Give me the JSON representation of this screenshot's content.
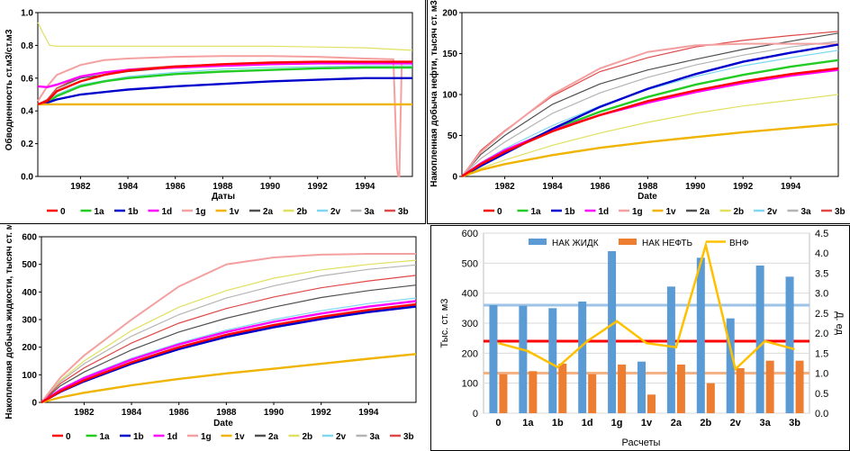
{
  "legend": [
    "0",
    "1a",
    "1b",
    "1d",
    "1g",
    "1v",
    "2a",
    "2b",
    "2v",
    "3a",
    "3b"
  ],
  "colors": {
    "0": "#ff0000",
    "1a": "#22cc22",
    "1b": "#0000cc",
    "1d": "#ff00ff",
    "1g": "#f4a0a0",
    "1v": "#f0b400",
    "2a": "#505050",
    "2b": "#e0e060",
    "2v": "#80d8f0",
    "3a": "#b4b4b4",
    "3b": "#e04848"
  },
  "chart_data": [
    {
      "type": "line",
      "ylabel": "Обводненность   ст.м3/ст.м3",
      "xlabel": "Даты",
      "xlim": [
        1980.2,
        1996.0
      ],
      "ylim": [
        0,
        1.0
      ],
      "yticks": [
        "0.0",
        "0.2",
        "0.4",
        "0.6",
        "0.8",
        "1.0"
      ],
      "xticks": [
        "1982",
        "1984",
        "1986",
        "1988",
        "1990",
        "1992",
        "1994"
      ],
      "series": [
        {
          "name": "0",
          "x": [
            1980.2,
            1980.6,
            1981,
            1982,
            1983,
            1984,
            1986,
            1988,
            1990,
            1992,
            1994,
            1995.4,
            1996
          ],
          "values": [
            0.44,
            0.46,
            0.52,
            0.58,
            0.62,
            0.645,
            0.67,
            0.685,
            0.695,
            0.7,
            0.7,
            0.7,
            0.7
          ]
        },
        {
          "name": "1a",
          "x": [
            1980.2,
            1980.6,
            1981,
            1982,
            1983,
            1984,
            1986,
            1988,
            1990,
            1992,
            1994,
            1996
          ],
          "values": [
            0.44,
            0.45,
            0.49,
            0.55,
            0.58,
            0.6,
            0.625,
            0.64,
            0.65,
            0.66,
            0.665,
            0.665
          ]
        },
        {
          "name": "1b",
          "x": [
            1980.2,
            1980.6,
            1981,
            1982,
            1984,
            1986,
            1988,
            1990,
            1992,
            1994,
            1996
          ],
          "values": [
            0.44,
            0.45,
            0.47,
            0.5,
            0.53,
            0.55,
            0.565,
            0.58,
            0.59,
            0.6,
            0.6
          ]
        },
        {
          "name": "1d",
          "x": [
            1980.2,
            1980.6,
            1981,
            1982,
            1983,
            1984,
            1986,
            1988,
            1990,
            1992,
            1994,
            1996
          ],
          "values": [
            0.55,
            0.545,
            0.56,
            0.61,
            0.635,
            0.65,
            0.665,
            0.675,
            0.685,
            0.69,
            0.69,
            0.69
          ]
        },
        {
          "name": "1g",
          "x": [
            1980.2,
            1980.6,
            1981,
            1982,
            1983,
            1984,
            1986,
            1988,
            1990,
            1992,
            1994,
            1995.2,
            1995.35,
            1995.4,
            1995.45,
            1995.55,
            1996
          ],
          "values": [
            0.46,
            0.55,
            0.62,
            0.68,
            0.71,
            0.72,
            0.73,
            0.735,
            0.735,
            0.73,
            0.72,
            0.715,
            0.05,
            0.0,
            0.0,
            0.7,
            0.7
          ]
        },
        {
          "name": "1v",
          "x": [
            1980.2,
            1996
          ],
          "values": [
            0.44,
            0.44
          ]
        },
        {
          "name": "2a",
          "x": [
            1980.2,
            1980.6,
            1981,
            1982,
            1984,
            1986,
            1988,
            1990,
            1992,
            1994,
            1996
          ],
          "values": [
            0.44,
            0.47,
            0.54,
            0.6,
            0.64,
            0.665,
            0.68,
            0.69,
            0.695,
            0.7,
            0.7
          ]
        },
        {
          "name": "2b",
          "x": [
            1980.2,
            1980.4,
            1980.7,
            1981,
            1982,
            1984,
            1986,
            1988,
            1990,
            1992,
            1994,
            1996
          ],
          "values": [
            0.94,
            0.88,
            0.8,
            0.795,
            0.795,
            0.795,
            0.795,
            0.795,
            0.795,
            0.79,
            0.785,
            0.77
          ]
        },
        {
          "name": "2v",
          "x": [
            1980.2,
            1980.6,
            1981,
            1982,
            1984,
            1986,
            1988,
            1990,
            1992,
            1994,
            1996
          ],
          "values": [
            0.44,
            0.46,
            0.5,
            0.56,
            0.61,
            0.635,
            0.655,
            0.665,
            0.67,
            0.675,
            0.675
          ]
        },
        {
          "name": "3a",
          "x": [
            1980.2,
            1980.6,
            1981,
            1982,
            1984,
            1986,
            1988,
            1990,
            1992,
            1994,
            1996
          ],
          "values": [
            0.44,
            0.47,
            0.53,
            0.6,
            0.645,
            0.665,
            0.68,
            0.69,
            0.69,
            0.695,
            0.695
          ]
        },
        {
          "name": "3b",
          "x": [
            1980.2,
            1980.6,
            1981,
            1982,
            1984,
            1986,
            1988,
            1990,
            1992,
            1994,
            1996
          ],
          "values": [
            0.44,
            0.47,
            0.54,
            0.61,
            0.655,
            0.675,
            0.685,
            0.69,
            0.695,
            0.7,
            0.7
          ]
        }
      ]
    },
    {
      "type": "line",
      "ylabel": "Накопленная добыча нефти,  тысяч ст. м3",
      "xlabel": "Date",
      "xlim": [
        1980.2,
        1996.0
      ],
      "ylim": [
        0,
        200
      ],
      "yticks": [
        "0",
        "50",
        "100",
        "150",
        "200"
      ],
      "xticks": [
        "1982",
        "1984",
        "1986",
        "1988",
        "1990",
        "1992",
        "1994"
      ],
      "series": [
        {
          "name": "0",
          "x": [
            1980.2,
            1981,
            1982,
            1984,
            1986,
            1988,
            1990,
            1992,
            1994,
            1996
          ],
          "values": [
            0,
            15,
            30,
            55,
            75,
            92,
            105,
            116,
            125,
            132
          ]
        },
        {
          "name": "1a",
          "x": [
            1980.2,
            1981,
            1982,
            1984,
            1986,
            1988,
            1990,
            1992,
            1994,
            1996
          ],
          "values": [
            0,
            15,
            31,
            57,
            79,
            97,
            112,
            124,
            134,
            142
          ]
        },
        {
          "name": "1b",
          "x": [
            1980.2,
            1981,
            1982,
            1984,
            1986,
            1988,
            1990,
            1992,
            1994,
            1996
          ],
          "values": [
            0,
            13,
            28,
            58,
            85,
            107,
            125,
            140,
            151,
            161
          ]
        },
        {
          "name": "1d",
          "x": [
            1980.2,
            1981,
            1982,
            1984,
            1986,
            1988,
            1990,
            1992,
            1994,
            1996
          ],
          "values": [
            0,
            16,
            32,
            56,
            75,
            90,
            103,
            114,
            123,
            130
          ]
        },
        {
          "name": "1g",
          "x": [
            1980.2,
            1981,
            1982,
            1984,
            1986,
            1988,
            1990,
            1992,
            1994,
            1996
          ],
          "values": [
            0,
            30,
            55,
            100,
            132,
            152,
            160,
            162,
            162,
            162
          ]
        },
        {
          "name": "1v",
          "x": [
            1980.2,
            1981,
            1982,
            1984,
            1986,
            1988,
            1990,
            1992,
            1994,
            1996
          ],
          "values": [
            0,
            8,
            15,
            26,
            35,
            42,
            48,
            54,
            59,
            64
          ]
        },
        {
          "name": "2a",
          "x": [
            1980.2,
            1981,
            1982,
            1984,
            1986,
            1988,
            1990,
            1992,
            1994,
            1996
          ],
          "values": [
            0,
            27,
            50,
            88,
            113,
            130,
            143,
            155,
            165,
            175
          ]
        },
        {
          "name": "2b",
          "x": [
            1980.2,
            1981,
            1982,
            1984,
            1986,
            1988,
            1990,
            1992,
            1994,
            1996
          ],
          "values": [
            0,
            10,
            20,
            38,
            53,
            66,
            77,
            86,
            93,
            100
          ]
        },
        {
          "name": "2v",
          "x": [
            1980.2,
            1981,
            1982,
            1984,
            1986,
            1988,
            1990,
            1992,
            1994,
            1996
          ],
          "values": [
            0,
            17,
            34,
            62,
            86,
            106,
            122,
            135,
            145,
            154
          ]
        },
        {
          "name": "3a",
          "x": [
            1980.2,
            1981,
            1982,
            1984,
            1986,
            1988,
            1990,
            1992,
            1994,
            1996
          ],
          "values": [
            0,
            22,
            42,
            77,
            102,
            121,
            136,
            148,
            158,
            165
          ]
        },
        {
          "name": "3b",
          "x": [
            1980.2,
            1981,
            1982,
            1984,
            1986,
            1988,
            1990,
            1992,
            1994,
            1996
          ],
          "values": [
            0,
            32,
            56,
            98,
            128,
            145,
            158,
            166,
            172,
            177
          ]
        }
      ]
    },
    {
      "type": "line",
      "ylabel": "Накопленная добыча жидкости,   тысяч ст. м3",
      "xlabel": "Date",
      "xlim": [
        1980.2,
        1996.0
      ],
      "ylim": [
        0,
        600
      ],
      "yticks": [
        "0",
        "100",
        "200",
        "300",
        "400",
        "500",
        "600"
      ],
      "xticks": [
        "1982",
        "1984",
        "1986",
        "1988",
        "1990",
        "1992",
        "1994"
      ],
      "series": [
        {
          "name": "0",
          "x": [
            1980.2,
            1981,
            1982,
            1984,
            1986,
            1988,
            1990,
            1992,
            1994,
            1996
          ],
          "values": [
            0,
            40,
            80,
            145,
            200,
            245,
            280,
            310,
            335,
            355
          ]
        },
        {
          "name": "1a",
          "x": [
            1980.2,
            1981,
            1982,
            1984,
            1986,
            1988,
            1990,
            1992,
            1994,
            1996
          ],
          "values": [
            0,
            40,
            78,
            142,
            196,
            240,
            276,
            306,
            330,
            350
          ]
        },
        {
          "name": "1b",
          "x": [
            1980.2,
            1981,
            1982,
            1984,
            1986,
            1988,
            1990,
            1992,
            1994,
            1996
          ],
          "values": [
            0,
            38,
            76,
            140,
            193,
            237,
            272,
            302,
            327,
            347
          ]
        },
        {
          "name": "1d",
          "x": [
            1980.2,
            1981,
            1982,
            1984,
            1986,
            1988,
            1990,
            1992,
            1994,
            1996
          ],
          "values": [
            0,
            46,
            88,
            155,
            210,
            255,
            292,
            322,
            347,
            367
          ]
        },
        {
          "name": "1g",
          "x": [
            1980.2,
            1981,
            1982,
            1984,
            1986,
            1988,
            1990,
            1992,
            1994,
            1996
          ],
          "values": [
            0,
            90,
            170,
            300,
            420,
            500,
            525,
            535,
            538,
            538
          ]
        },
        {
          "name": "1v",
          "x": [
            1980.2,
            1981,
            1982,
            1984,
            1986,
            1988,
            1990,
            1992,
            1994,
            1996
          ],
          "values": [
            0,
            18,
            35,
            62,
            85,
            105,
            122,
            140,
            158,
            175
          ]
        },
        {
          "name": "2a",
          "x": [
            1980.2,
            1981,
            1982,
            1984,
            1986,
            1988,
            1990,
            1992,
            1994,
            1996
          ],
          "values": [
            0,
            60,
            110,
            190,
            255,
            305,
            345,
            380,
            405,
            425
          ]
        },
        {
          "name": "2b",
          "x": [
            1980.2,
            1981,
            1982,
            1984,
            1986,
            1988,
            1990,
            1992,
            1994,
            1996
          ],
          "values": [
            0,
            80,
            150,
            260,
            345,
            405,
            450,
            480,
            500,
            515
          ]
        },
        {
          "name": "2v",
          "x": [
            1980.2,
            1981,
            1982,
            1984,
            1986,
            1988,
            1990,
            1992,
            1994,
            1996
          ],
          "values": [
            0,
            48,
            92,
            160,
            215,
            262,
            300,
            332,
            358,
            378
          ]
        },
        {
          "name": "3a",
          "x": [
            1980.2,
            1981,
            1982,
            1984,
            1986,
            1988,
            1990,
            1992,
            1994,
            1996
          ],
          "values": [
            0,
            75,
            140,
            240,
            318,
            378,
            422,
            458,
            482,
            498
          ]
        },
        {
          "name": "3b",
          "x": [
            1980.2,
            1981,
            1982,
            1984,
            1986,
            1988,
            1990,
            1992,
            1994,
            1996
          ],
          "values": [
            0,
            68,
            125,
            215,
            287,
            340,
            382,
            415,
            440,
            460
          ]
        }
      ]
    },
    {
      "type": "bar",
      "categories": [
        "0",
        "1a",
        "1b",
        "1d",
        "1g",
        "1v",
        "2a",
        "2b",
        "2v",
        "3a",
        "3b"
      ],
      "xlabel": "Расчеты",
      "ylabel": "Тыс. ст. м3",
      "ylabel_right": "Д. ед",
      "ylim": [
        0,
        600
      ],
      "ylim_right": [
        0,
        4.5
      ],
      "yticks": [
        "0",
        "100",
        "200",
        "300",
        "400",
        "500",
        "600"
      ],
      "yticks_right": [
        "0.0",
        "0.5",
        "1.0",
        "1.5",
        "2.0",
        "2.5",
        "3.0",
        "3.5",
        "4.0",
        "4.5"
      ],
      "series": [
        {
          "name": "НАК ЖИДК",
          "color": "#5b9bd5",
          "values": [
            360,
            358,
            350,
            372,
            540,
            172,
            422,
            518,
            316,
            492,
            455
          ]
        },
        {
          "name": "НАК НЕФТЬ",
          "color": "#ed7d31",
          "values": [
            130,
            140,
            165,
            130,
            162,
            62,
            162,
            100,
            150,
            175,
            175
          ]
        },
        {
          "name": "ВНФ",
          "color": "#ffc000",
          "axis": "right",
          "values": [
            1.75,
            1.55,
            1.15,
            1.8,
            2.3,
            1.75,
            1.65,
            4.2,
            1.1,
            1.8,
            1.6
          ]
        }
      ],
      "reference_lines": [
        {
          "color": "#9dc3e6",
          "value": 2.7,
          "axis": "right"
        },
        {
          "color": "#ff0000",
          "value": 1.8,
          "axis": "right"
        },
        {
          "color": "#f4b183",
          "value": 1.0,
          "axis": "right"
        }
      ]
    }
  ]
}
